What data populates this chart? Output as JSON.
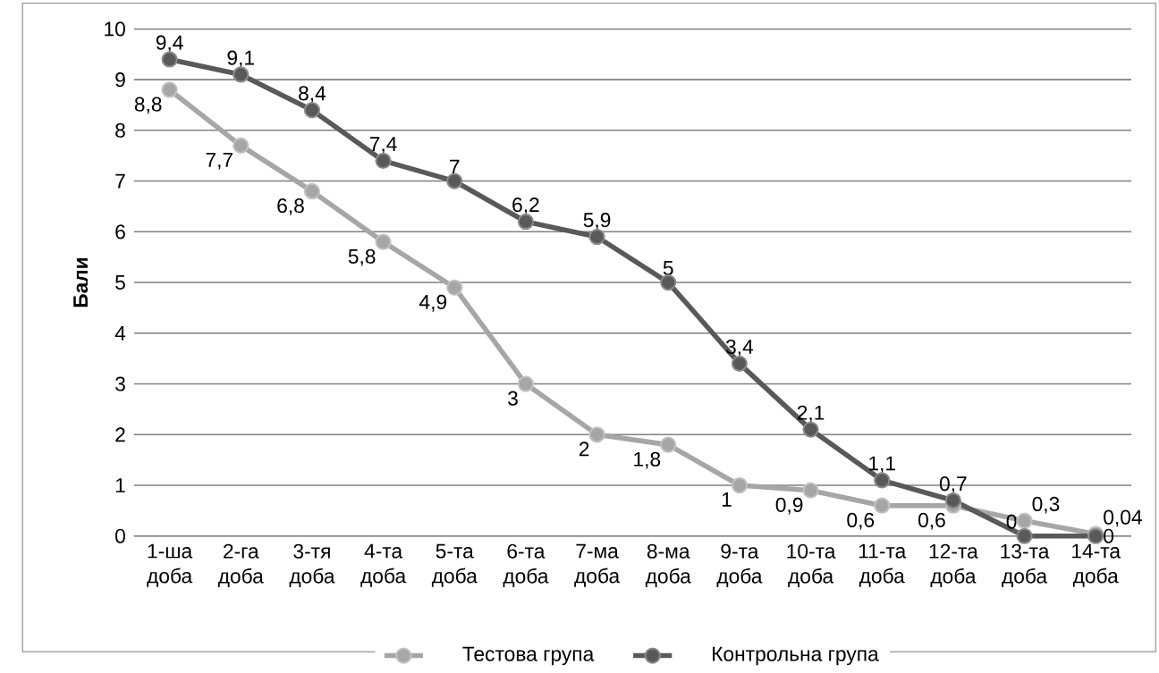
{
  "chart_data": {
    "type": "line",
    "ylabel": "Бали",
    "categories": [
      "1-ша доба",
      "2-га доба",
      "3-тя доба",
      "4-та доба",
      "5-та доба",
      "6-та доба",
      "7-ма доба",
      "8-ма доба",
      "9-та доба",
      "10-та доба",
      "11-та доба",
      "12-та доба",
      "13-та доба",
      "14-та доба"
    ],
    "series": [
      {
        "name": "Тестова група",
        "color": "#a6a6a6",
        "values": [
          8.8,
          7.7,
          6.8,
          5.8,
          4.9,
          3,
          2,
          1.8,
          1,
          0.9,
          0.6,
          0.6,
          0.3,
          0.04
        ],
        "value_labels": [
          "8,8",
          "7,7",
          "6,8",
          "5,8",
          "4,9",
          "3",
          "2",
          "1,8",
          "1",
          "0,9",
          "0,6",
          "0,6",
          "0,3",
          "0,04"
        ]
      },
      {
        "name": "Контрольна група",
        "color": "#595959",
        "values": [
          9.4,
          9.1,
          8.4,
          7.4,
          7,
          6.2,
          5.9,
          5,
          3.4,
          2.1,
          1.1,
          0.7,
          0,
          0
        ],
        "value_labels": [
          "9,4",
          "9,1",
          "8,4",
          "7,4",
          "7",
          "6,2",
          "5,9",
          "5",
          "3,4",
          "2,1",
          "1,1",
          "0,7",
          "0",
          "0"
        ]
      }
    ],
    "ylim": [
      0,
      10
    ],
    "yticks": [
      0,
      1,
      2,
      3,
      4,
      5,
      6,
      7,
      8,
      9,
      10
    ],
    "grid": "y",
    "legend": "bottom",
    "marker": "circle",
    "line_style": "solid"
  }
}
